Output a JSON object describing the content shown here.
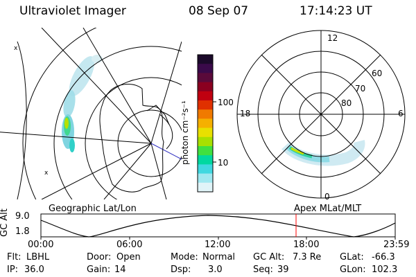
{
  "header": {
    "instrument": "Ultraviolet Imager",
    "date": "08 Sep 07",
    "time": "17:14:23 UT"
  },
  "colorbar": {
    "unit_label": "photon cm⁻²s⁻¹",
    "ticks": [
      "100",
      "10"
    ],
    "colors": [
      "#1b0a2a",
      "#3a0a4a",
      "#5a0a3a",
      "#8a0020",
      "#c00010",
      "#e03000",
      "#f07a00",
      "#f5b000",
      "#e8e000",
      "#a8e000",
      "#40e040",
      "#00d8a0",
      "#40d8e0",
      "#a0e8f0",
      "#e0f4f8"
    ]
  },
  "left_map": {
    "label": "Geographic Lat/Lon"
  },
  "right_map": {
    "label": "Apex MLat/MLT",
    "mlt_labels": [
      "12",
      "18",
      "6",
      "0"
    ],
    "lat_labels": [
      "60",
      "70",
      "80"
    ]
  },
  "timeline": {
    "yaxis_label": "GC Alt",
    "y_ticks": [
      "9.0",
      "1.8"
    ],
    "x_ticks": [
      "00:00",
      "06:00",
      "12:00",
      "18:00",
      "23:59"
    ],
    "marker_color": "#ff0000"
  },
  "status": {
    "row1": [
      {
        "name": "Flt:",
        "value": "LBHL"
      },
      {
        "name": "Door:",
        "value": "Open"
      },
      {
        "name": "Mode:",
        "value": "Normal"
      },
      {
        "name": "GC Alt:",
        "value": "7.3 Re"
      },
      {
        "name": "GLat:",
        "value": "-66.3"
      }
    ],
    "row2": [
      {
        "name": "IP:",
        "value": "36.0"
      },
      {
        "name": "Gain:",
        "value": "14"
      },
      {
        "name": "Dsp:",
        "value": "3.0"
      },
      {
        "name": "Seq:",
        "value": "39"
      },
      {
        "name": "GLon:",
        "value": "102.3"
      }
    ]
  }
}
